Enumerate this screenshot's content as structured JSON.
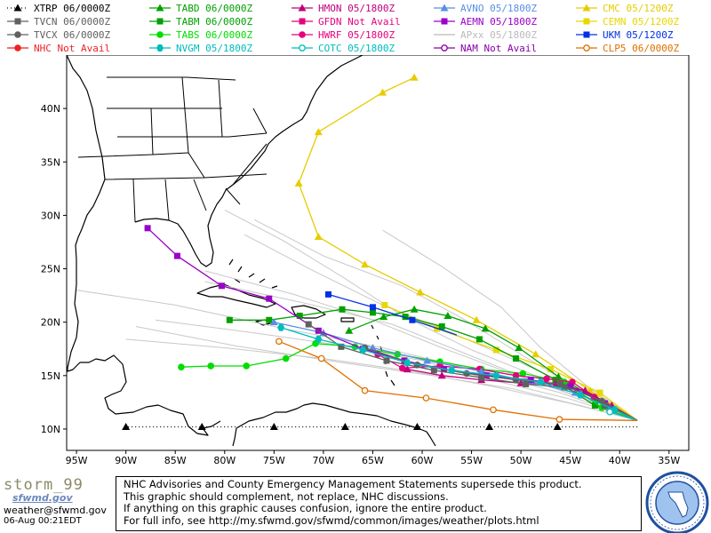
{
  "legend": [
    {
      "label": "XTRP 06/0000Z",
      "color": "#000000",
      "marker": "triangle",
      "dash": "1,3"
    },
    {
      "label": "TABD 06/0000Z",
      "color": "#00a000",
      "marker": "triangle"
    },
    {
      "label": "HMON 05/1800Z",
      "color": "#c0007c",
      "marker": "triangle"
    },
    {
      "label": "AVNO 05/1800Z",
      "color": "#5a8ee6",
      "marker": "triangle"
    },
    {
      "label": "CMC 05/1200Z",
      "color": "#e6cc00",
      "marker": "triangle"
    },
    {
      "label": "TVCN 06/0000Z",
      "color": "#606060",
      "marker": "square"
    },
    {
      "label": "TABM 06/0000Z",
      "color": "#00a000",
      "marker": "square"
    },
    {
      "label": "GFDN Not Avail",
      "color": "#e6007c",
      "marker": "square"
    },
    {
      "label": "AEMN 05/1800Z",
      "color": "#9a00c8",
      "marker": "square"
    },
    {
      "label": "CEMN 05/1200Z",
      "color": "#e6d800",
      "marker": "square"
    },
    {
      "label": "TVCX 06/0000Z",
      "color": "#606060",
      "marker": "circle"
    },
    {
      "label": "TABS 06/0000Z",
      "color": "#00dd00",
      "marker": "circle"
    },
    {
      "label": "HWRF 05/1800Z",
      "color": "#e6007c",
      "marker": "circle"
    },
    {
      "label": "APxx 05/1800Z",
      "color": "#bbbbbb",
      "marker": "none"
    },
    {
      "label": "UKM 05/1200Z",
      "color": "#0030e6",
      "marker": "square"
    },
    {
      "label": "NHC Not Avail",
      "color": "#ee2222",
      "marker": "circle"
    },
    {
      "label": "NVGM 05/1800Z",
      "color": "#00bcbc",
      "marker": "hexagon"
    },
    {
      "label": "COTC 05/1800Z",
      "color": "#00bcbc",
      "marker": "ring"
    },
    {
      "label": "NAM Not Avail",
      "color": "#8800aa",
      "marker": "ring"
    },
    {
      "label": "CLP5 06/0000Z",
      "color": "#e07000",
      "marker": "ring"
    }
  ],
  "map": {
    "lon_min": -96,
    "lon_max": -33,
    "lat_min": 8,
    "lat_max": 45,
    "lat_ticks": [
      {
        "v": 10,
        "label": "10N"
      },
      {
        "v": 15,
        "label": "15N"
      },
      {
        "v": 20,
        "label": "20N"
      },
      {
        "v": 25,
        "label": "25N"
      },
      {
        "v": 30,
        "label": "30N"
      },
      {
        "v": 35,
        "label": "35N"
      },
      {
        "v": 40,
        "label": "40N"
      }
    ],
    "lon_ticks": [
      {
        "v": -95,
        "label": "95W"
      },
      {
        "v": -90,
        "label": "90W"
      },
      {
        "v": -85,
        "label": "85W"
      },
      {
        "v": -80,
        "label": "80W"
      },
      {
        "v": -75,
        "label": "75W"
      },
      {
        "v": -70,
        "label": "70W"
      },
      {
        "v": -65,
        "label": "65W"
      },
      {
        "v": -60,
        "label": "60W"
      },
      {
        "v": -55,
        "label": "55W"
      },
      {
        "v": -50,
        "label": "50W"
      },
      {
        "v": -45,
        "label": "45W"
      },
      {
        "v": -40,
        "label": "40W"
      },
      {
        "v": -35,
        "label": "35W"
      }
    ],
    "land_color": "#000000",
    "tracks": [
      {
        "model": "APxx",
        "color": "#c8c8c8",
        "marker": "none",
        "points": [
          [
            -38.2,
            10.8
          ],
          [
            -42,
            12.5
          ],
          [
            -48,
            14.8
          ],
          [
            -55,
            17.4
          ],
          [
            -62,
            20.6
          ],
          [
            -68,
            24.2
          ],
          [
            -74,
            27.6
          ],
          [
            -80,
            30.5
          ]
        ]
      },
      {
        "model": "APxx",
        "color": "#c8c8c8",
        "marker": "none",
        "points": [
          [
            -38.2,
            10.8
          ],
          [
            -43,
            13.2
          ],
          [
            -50,
            16.2
          ],
          [
            -57,
            19
          ],
          [
            -64,
            21.6
          ],
          [
            -71,
            24.8
          ],
          [
            -78,
            28.2
          ]
        ]
      },
      {
        "model": "APxx",
        "color": "#c8c8c8",
        "marker": "none",
        "points": [
          [
            -38.2,
            10.8
          ],
          [
            -44,
            13
          ],
          [
            -51,
            15.2
          ],
          [
            -58,
            17.6
          ],
          [
            -65,
            20.2
          ],
          [
            -73,
            22.6
          ],
          [
            -82,
            24.8
          ]
        ]
      },
      {
        "model": "APxx",
        "color": "#c8c8c8",
        "marker": "none",
        "points": [
          [
            -38.2,
            10.8
          ],
          [
            -45,
            12.8
          ],
          [
            -53,
            14.6
          ],
          [
            -60,
            16.4
          ],
          [
            -68,
            17.8
          ],
          [
            -77,
            19
          ],
          [
            -87,
            20.2
          ]
        ]
      },
      {
        "model": "APxx",
        "color": "#c8c8c8",
        "marker": "none",
        "points": [
          [
            -38.2,
            10.8
          ],
          [
            -45,
            12.4
          ],
          [
            -53,
            14
          ],
          [
            -61,
            15.4
          ],
          [
            -70,
            16.6
          ],
          [
            -80,
            17.6
          ],
          [
            -90,
            18.4
          ]
        ]
      },
      {
        "model": "APxx",
        "color": "#c8c8c8",
        "marker": "none",
        "points": [
          [
            -38.2,
            10.8
          ],
          [
            -44,
            12.2
          ],
          [
            -51,
            13.8
          ],
          [
            -59,
            15
          ],
          [
            -68,
            16.2
          ],
          [
            -79,
            17.8
          ],
          [
            -89,
            19.6
          ]
        ]
      },
      {
        "model": "APxx",
        "color": "#c8c8c8",
        "marker": "none",
        "points": [
          [
            -38.2,
            10.8
          ],
          [
            -43,
            12.6
          ],
          [
            -49,
            14.6
          ],
          [
            -56,
            17.2
          ],
          [
            -63,
            19.8
          ],
          [
            -72,
            21.8
          ],
          [
            -82,
            23.8
          ]
        ]
      },
      {
        "model": "APxx",
        "color": "#c8c8c8",
        "marker": "none",
        "points": [
          [
            -38.2,
            10.8
          ],
          [
            -44,
            13.6
          ],
          [
            -50,
            17
          ],
          [
            -56,
            20.4
          ],
          [
            -62,
            23.4
          ],
          [
            -70,
            26.2
          ],
          [
            -77,
            29.6
          ]
        ]
      },
      {
        "model": "APxx",
        "color": "#c8c8c8",
        "marker": "none",
        "points": [
          [
            -38.2,
            10.8
          ],
          [
            -46,
            13.4
          ],
          [
            -55,
            15.6
          ],
          [
            -64,
            17.6
          ],
          [
            -74,
            19.4
          ],
          [
            -85,
            21.6
          ],
          [
            -95,
            23
          ]
        ]
      },
      {
        "model": "APxx",
        "color": "#c8c8c8",
        "marker": "none",
        "points": [
          [
            -38.2,
            10.8
          ],
          [
            -43,
            13.8
          ],
          [
            -48,
            17.6
          ],
          [
            -52,
            21.4
          ],
          [
            -58,
            25.2
          ],
          [
            -64,
            28.6
          ]
        ]
      },
      {
        "model": "XTRP",
        "color": "#000000",
        "marker": "triangle",
        "dash": "1,3",
        "points": [
          [
            -38.2,
            10.2
          ],
          [
            -46.3,
            10.2
          ],
          [
            -53.2,
            10.2
          ],
          [
            -60.5,
            10.2
          ],
          [
            -67.8,
            10.2
          ],
          [
            -75,
            10.2
          ],
          [
            -82.3,
            10.2
          ],
          [
            -90,
            10.2
          ]
        ]
      },
      {
        "model": "CMC",
        "color": "#e6cc00",
        "marker": "triangle",
        "points": [
          [
            -38.2,
            10.8
          ],
          [
            -43,
            13.6
          ],
          [
            -48.5,
            17
          ],
          [
            -54.5,
            20.2
          ],
          [
            -60.2,
            22.8
          ],
          [
            -65.8,
            25.4
          ],
          [
            -70.5,
            28
          ],
          [
            -72.5,
            33
          ],
          [
            -70.5,
            37.8
          ],
          [
            -64,
            41.5
          ],
          [
            -60.8,
            42.9
          ]
        ]
      },
      {
        "model": "CEMN",
        "color": "#e6d800",
        "marker": "square",
        "points": [
          [
            -38.2,
            10.8
          ],
          [
            -42,
            13.4
          ],
          [
            -47,
            15.6
          ],
          [
            -52.5,
            17.4
          ],
          [
            -58.5,
            19.4
          ],
          [
            -63.8,
            21.6
          ]
        ]
      },
      {
        "model": "TABD",
        "color": "#00a000",
        "marker": "triangle",
        "points": [
          [
            -38.2,
            10.8
          ],
          [
            -42.3,
            12.8
          ],
          [
            -46.2,
            14.9
          ],
          [
            -50.2,
            17.6
          ],
          [
            -53.6,
            19.4
          ],
          [
            -57.4,
            20.6
          ],
          [
            -60.8,
            21.2
          ],
          [
            -63.9,
            20.5
          ],
          [
            -67.4,
            19.2
          ]
        ]
      },
      {
        "model": "TABM",
        "color": "#00a000",
        "marker": "square",
        "points": [
          [
            -38.2,
            10.8
          ],
          [
            -42.5,
            12.2
          ],
          [
            -46.5,
            14.6
          ],
          [
            -50.5,
            16.6
          ],
          [
            -54.2,
            18.4
          ],
          [
            -58,
            19.6
          ],
          [
            -61.7,
            20.5
          ],
          [
            -65,
            20.9
          ],
          [
            -68.1,
            21.2
          ],
          [
            -72.4,
            20.6
          ],
          [
            -75.5,
            20.2
          ],
          [
            -79.5,
            20.2
          ]
        ]
      },
      {
        "model": "TABS",
        "color": "#00dd00",
        "marker": "circle",
        "points": [
          [
            -38.2,
            10.8
          ],
          [
            -41.8,
            12
          ],
          [
            -45.6,
            14.4
          ],
          [
            -49.8,
            15.2
          ],
          [
            -54,
            15.6
          ],
          [
            -58.2,
            16.3
          ],
          [
            -62.5,
            17
          ],
          [
            -66.8,
            17.7
          ],
          [
            -70.8,
            18
          ],
          [
            -73.8,
            16.6
          ],
          [
            -77.8,
            15.9
          ],
          [
            -81.4,
            15.9
          ],
          [
            -84.4,
            15.8
          ]
        ]
      },
      {
        "model": "HWRF",
        "color": "#e6007c",
        "marker": "circle",
        "points": [
          [
            -38.2,
            10.8
          ],
          [
            -40.5,
            11.8
          ],
          [
            -42.6,
            13
          ],
          [
            -44.8,
            14.4
          ],
          [
            -47.4,
            14.7
          ],
          [
            -50.5,
            15
          ],
          [
            -54.2,
            15.6
          ],
          [
            -58.2,
            15.9
          ],
          [
            -62,
            15.7
          ],
          [
            -64.5,
            17
          ]
        ]
      },
      {
        "model": "HMON",
        "color": "#c0007c",
        "marker": "triangle",
        "points": [
          [
            -38.2,
            10.8
          ],
          [
            -40.8,
            12.2
          ],
          [
            -43.5,
            13.6
          ],
          [
            -46.5,
            14.2
          ],
          [
            -50,
            14.3
          ],
          [
            -54,
            14.6
          ],
          [
            -58,
            15
          ],
          [
            -61.5,
            15.6
          ]
        ]
      },
      {
        "model": "AVNO",
        "color": "#5a8ee6",
        "marker": "triangle",
        "points": [
          [
            -38.2,
            10.8
          ],
          [
            -41,
            12
          ],
          [
            -44.5,
            13.4
          ],
          [
            -49,
            14.4
          ],
          [
            -54,
            15.4
          ],
          [
            -59.5,
            16.4
          ],
          [
            -65,
            17.6
          ],
          [
            -70,
            19
          ],
          [
            -75,
            20
          ]
        ]
      },
      {
        "model": "AEMN",
        "color": "#9a00c8",
        "marker": "square",
        "points": [
          [
            -38.2,
            10.8
          ],
          [
            -41.5,
            12.4
          ],
          [
            -45,
            14
          ],
          [
            -49,
            14.6
          ],
          [
            -53.5,
            15
          ],
          [
            -57.8,
            15.6
          ],
          [
            -61.8,
            16.4
          ],
          [
            -66,
            17.5
          ],
          [
            -70.5,
            19.2
          ],
          [
            -75.5,
            22.2
          ],
          [
            -80.3,
            23.4
          ],
          [
            -84.8,
            26.2
          ],
          [
            -87.8,
            28.8
          ]
        ]
      },
      {
        "model": "TVCN",
        "color": "#606060",
        "marker": "square",
        "points": [
          [
            -38.2,
            10.8
          ],
          [
            -41.5,
            12.2
          ],
          [
            -45.6,
            13.9
          ],
          [
            -49.5,
            14.2
          ],
          [
            -54,
            14.8
          ],
          [
            -58.8,
            15.5
          ],
          [
            -63.6,
            16.4
          ],
          [
            -68.2,
            17.7
          ],
          [
            -71.5,
            19.8
          ]
        ]
      },
      {
        "model": "TVCX",
        "color": "#606060",
        "marker": "circle",
        "points": [
          [
            -38.2,
            10.8
          ],
          [
            -41.8,
            12.6
          ],
          [
            -46,
            14.2
          ],
          [
            -50.5,
            14.6
          ],
          [
            -55.5,
            15.2
          ],
          [
            -60.5,
            16
          ],
          [
            -65.8,
            17.6
          ]
        ]
      },
      {
        "model": "UKM",
        "color": "#0030e6",
        "marker": "square",
        "points": [
          [
            -56.5,
            18.8
          ],
          [
            -61,
            20.2
          ],
          [
            -65,
            21.4
          ],
          [
            -69.5,
            22.6
          ]
        ]
      },
      {
        "model": "NVGM",
        "color": "#00bcbc",
        "marker": "hexagon",
        "points": [
          [
            -38.2,
            10.8
          ],
          [
            -40.5,
            11.8
          ],
          [
            -44,
            13.2
          ],
          [
            -48,
            14.4
          ],
          [
            -52.5,
            15
          ],
          [
            -57,
            15.5
          ],
          [
            -61.5,
            16.2
          ],
          [
            -66,
            17.4
          ],
          [
            -70.5,
            18.4
          ],
          [
            -74.3,
            19.5
          ]
        ]
      },
      {
        "model": "COTC",
        "color": "#00bcbc",
        "marker": "ring",
        "points": [
          [
            -38.2,
            10.8
          ],
          [
            -41,
            11.6
          ]
        ]
      },
      {
        "model": "CLP5",
        "color": "#e07000",
        "marker": "ring",
        "points": [
          [
            -38.2,
            10.8
          ],
          [
            -46.1,
            10.9
          ],
          [
            -52.8,
            11.8
          ],
          [
            -59.6,
            12.9
          ],
          [
            -65.8,
            13.6
          ],
          [
            -70.2,
            16.6
          ],
          [
            -74.5,
            18.2
          ]
        ]
      }
    ]
  },
  "footer": {
    "brand_name": "storm_99",
    "brand_sub": "sfwmd.gov",
    "brand_email": "weather@sfwmd.gov",
    "timestamp": "06-Aug 00:21EDT",
    "notice": [
      "NHC Advisories and County Emergency Management Statements supersede this product.",
      "This graphic should complement, not replace, NHC discussions.",
      "If anything on this graphic causes confusion, ignore the entire product.",
      "For full info, see  http://my.sfwmd.gov/sfwmd/common/images/weather/plots.html"
    ]
  }
}
